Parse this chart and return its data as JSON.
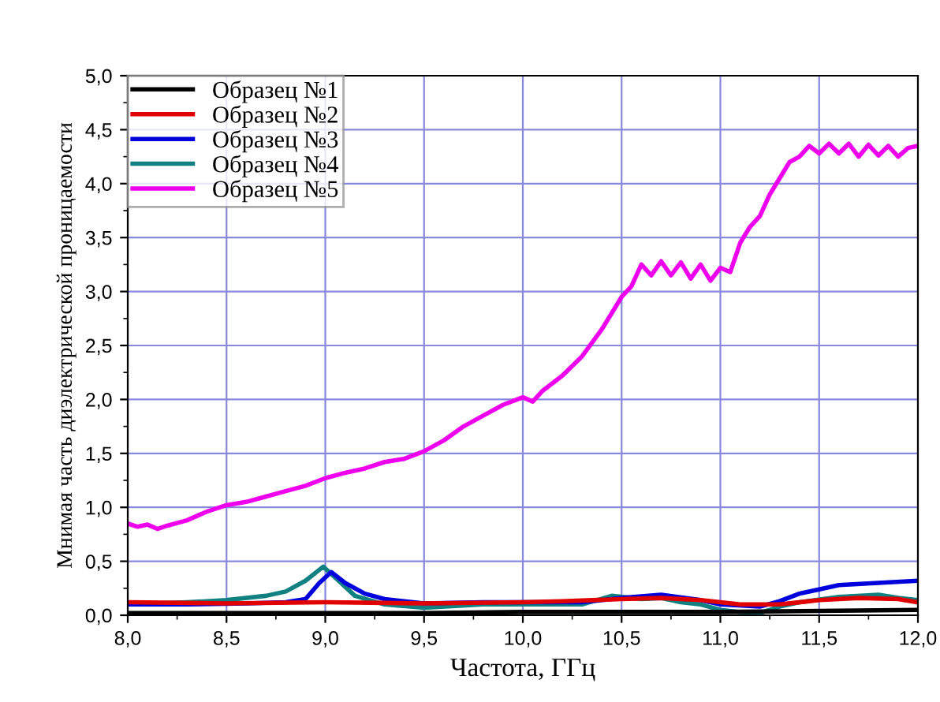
{
  "chart_data": {
    "type": "line",
    "xlabel": "Частота, ГГц",
    "ylabel": "Мнимая часть диэлектрической проницаемости",
    "xlim": [
      8.0,
      12.0
    ],
    "ylim": [
      0.0,
      5.0
    ],
    "xticks": [
      {
        "value": 8.0,
        "label": "8,0"
      },
      {
        "value": 8.5,
        "label": "8,5"
      },
      {
        "value": 9.0,
        "label": "9,0"
      },
      {
        "value": 9.5,
        "label": "9,5"
      },
      {
        "value": 10.0,
        "label": "10,0"
      },
      {
        "value": 10.5,
        "label": "10,5"
      },
      {
        "value": 11.0,
        "label": "11,0"
      },
      {
        "value": 11.5,
        "label": "11,5"
      },
      {
        "value": 12.0,
        "label": "12,0"
      }
    ],
    "yticks": [
      {
        "value": 0.0,
        "label": "0,0"
      },
      {
        "value": 0.5,
        "label": "0,5"
      },
      {
        "value": 1.0,
        "label": "1,0"
      },
      {
        "value": 1.5,
        "label": "1,5"
      },
      {
        "value": 2.0,
        "label": "2,0"
      },
      {
        "value": 2.5,
        "label": "2,5"
      },
      {
        "value": 3.0,
        "label": "3,0"
      },
      {
        "value": 3.5,
        "label": "3,5"
      },
      {
        "value": 4.0,
        "label": "4,0"
      },
      {
        "value": 4.5,
        "label": "4,5"
      },
      {
        "value": 5.0,
        "label": "5,0"
      }
    ],
    "grid": true,
    "legend": "top left",
    "marker": "none",
    "line_style": "solid",
    "series": [
      {
        "name": "Образец №1",
        "color": "#000000",
        "x": [
          8.0,
          8.5,
          9.0,
          9.5,
          10.0,
          10.5,
          11.0,
          11.5,
          12.0
        ],
        "values": [
          0.02,
          0.02,
          0.02,
          0.02,
          0.03,
          0.03,
          0.03,
          0.04,
          0.05
        ]
      },
      {
        "name": "Образец №2",
        "color": "#e00000",
        "x": [
          8.0,
          8.5,
          9.0,
          9.5,
          10.0,
          10.2,
          10.5,
          10.7,
          10.9,
          11.1,
          11.3,
          11.5,
          11.7,
          11.9,
          12.0
        ],
        "values": [
          0.12,
          0.11,
          0.12,
          0.11,
          0.12,
          0.13,
          0.15,
          0.16,
          0.14,
          0.1,
          0.1,
          0.14,
          0.16,
          0.15,
          0.12
        ]
      },
      {
        "name": "Образец №3",
        "color": "#0000dd",
        "x": [
          8.0,
          8.3,
          8.6,
          8.8,
          8.9,
          8.97,
          9.03,
          9.1,
          9.2,
          9.3,
          9.5,
          9.8,
          10.0,
          10.3,
          10.5,
          10.7,
          10.9,
          11.0,
          11.2,
          11.3,
          11.4,
          11.5,
          11.6,
          11.8,
          12.0
        ],
        "values": [
          0.1,
          0.1,
          0.11,
          0.12,
          0.15,
          0.3,
          0.4,
          0.3,
          0.2,
          0.15,
          0.11,
          0.12,
          0.12,
          0.12,
          0.16,
          0.19,
          0.14,
          0.1,
          0.08,
          0.13,
          0.2,
          0.24,
          0.28,
          0.3,
          0.32
        ]
      },
      {
        "name": "Образец №4",
        "color": "#108080",
        "x": [
          8.0,
          8.3,
          8.5,
          8.7,
          8.8,
          8.9,
          8.99,
          9.05,
          9.15,
          9.3,
          9.5,
          9.8,
          10.0,
          10.3,
          10.45,
          10.6,
          10.7,
          10.8,
          10.9,
          11.0,
          11.1,
          11.2,
          11.3,
          11.4,
          11.6,
          11.8,
          11.9,
          12.0
        ],
        "values": [
          0.1,
          0.12,
          0.14,
          0.18,
          0.22,
          0.32,
          0.45,
          0.35,
          0.18,
          0.1,
          0.07,
          0.1,
          0.1,
          0.1,
          0.18,
          0.15,
          0.16,
          0.12,
          0.1,
          0.05,
          0.03,
          0.02,
          0.08,
          0.12,
          0.17,
          0.19,
          0.16,
          0.14
        ]
      },
      {
        "name": "Образец №5",
        "color": "#ee00ee",
        "x": [
          8.0,
          8.05,
          8.1,
          8.15,
          8.2,
          8.3,
          8.4,
          8.5,
          8.6,
          8.7,
          8.8,
          8.9,
          9.0,
          9.1,
          9.2,
          9.3,
          9.4,
          9.5,
          9.6,
          9.7,
          9.8,
          9.9,
          10.0,
          10.05,
          10.1,
          10.2,
          10.3,
          10.4,
          10.45,
          10.5,
          10.55,
          10.6,
          10.65,
          10.7,
          10.75,
          10.8,
          10.85,
          10.9,
          10.95,
          11.0,
          11.05,
          11.1,
          11.15,
          11.2,
          11.25,
          11.3,
          11.35,
          11.4,
          11.45,
          11.5,
          11.55,
          11.6,
          11.65,
          11.7,
          11.75,
          11.8,
          11.85,
          11.9,
          11.95,
          12.0
        ],
        "values": [
          0.85,
          0.82,
          0.84,
          0.8,
          0.83,
          0.88,
          0.96,
          1.02,
          1.05,
          1.1,
          1.15,
          1.2,
          1.27,
          1.32,
          1.36,
          1.42,
          1.45,
          1.52,
          1.62,
          1.75,
          1.85,
          1.95,
          2.02,
          1.98,
          2.08,
          2.22,
          2.4,
          2.65,
          2.8,
          2.95,
          3.05,
          3.25,
          3.15,
          3.28,
          3.15,
          3.27,
          3.12,
          3.25,
          3.1,
          3.22,
          3.18,
          3.45,
          3.6,
          3.7,
          3.9,
          4.05,
          4.2,
          4.25,
          4.35,
          4.28,
          4.37,
          4.28,
          4.37,
          4.25,
          4.36,
          4.26,
          4.35,
          4.25,
          4.33,
          4.35
        ]
      }
    ]
  }
}
